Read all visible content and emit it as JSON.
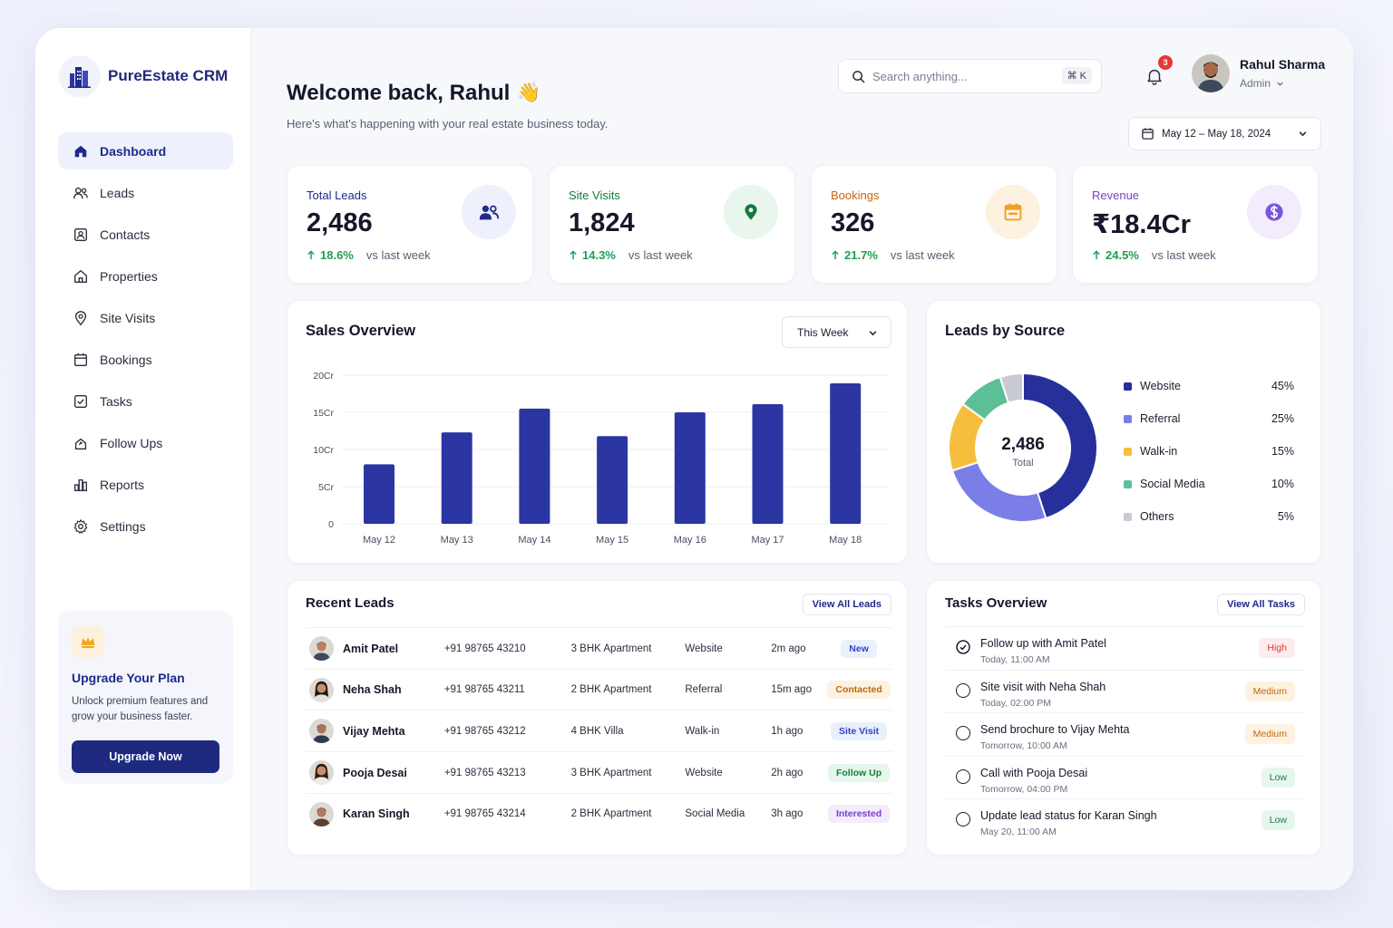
{
  "brand": {
    "name": "PureEstate CRM"
  },
  "sidebar": {
    "items": [
      {
        "label": "Dashboard",
        "icon": "home-icon"
      },
      {
        "label": "Leads",
        "icon": "users-icon"
      },
      {
        "label": "Contacts",
        "icon": "contact-card-icon"
      },
      {
        "label": "Properties",
        "icon": "house-icon"
      },
      {
        "label": "Site Visits",
        "icon": "map-pin-icon"
      },
      {
        "label": "Bookings",
        "icon": "calendar-icon"
      },
      {
        "label": "Tasks",
        "icon": "checkbox-icon"
      },
      {
        "label": "Follow Ups",
        "icon": "follow-up-icon"
      },
      {
        "label": "Reports",
        "icon": "bar-chart-icon"
      },
      {
        "label": "Settings",
        "icon": "gear-icon"
      }
    ],
    "active": "Dashboard"
  },
  "upgrade": {
    "title": "Upgrade Your Plan",
    "text": "Unlock premium features and grow your business faster.",
    "button": "Upgrade Now"
  },
  "header": {
    "welcome": "Welcome back, Rahul",
    "emoji": "👋",
    "subtitle": "Here's what's happening with your real estate business today.",
    "search_placeholder": "Search anything...",
    "search_shortcut": "⌘ K",
    "notification_count": "3",
    "user_name": "Rahul Sharma",
    "user_role": "Admin",
    "date_range": "May 12 – May 18, 2024"
  },
  "kpis": [
    {
      "label": "Total Leads",
      "value": "2,486",
      "change": "18.6%",
      "vs": "vs last week",
      "color": "#1f2a8c",
      "icon": "users-icon",
      "icon_bg": "#eef1fb"
    },
    {
      "label": "Site Visits",
      "value": "1,824",
      "change": "14.3%",
      "vs": "vs last week",
      "color": "#147a3d",
      "icon": "map-pin-icon",
      "icon_bg": "#e8f6ee"
    },
    {
      "label": "Bookings",
      "value": "326",
      "change": "21.7%",
      "vs": "vs last week",
      "color": "#c2680b",
      "icon": "calendar-icon",
      "icon_bg": "#fdf1e0"
    },
    {
      "label": "Revenue",
      "value": "₹18.4Cr",
      "change": "24.5%",
      "vs": "vs last week",
      "color": "#7a3fc7",
      "icon": "dollar-icon",
      "icon_bg": "#f2ecfc"
    }
  ],
  "sales": {
    "title": "Sales Overview",
    "filter": "This Week"
  },
  "chart_data": [
    {
      "type": "bar",
      "title": "Sales Overview",
      "categories": [
        "May 12",
        "May 13",
        "May 14",
        "May 15",
        "May 16",
        "May 17",
        "May 18"
      ],
      "values": [
        8,
        12.3,
        15.5,
        11.8,
        15,
        16.1,
        18.9
      ],
      "yticks": [
        "0",
        "5Cr",
        "10Cr",
        "15Cr",
        "20Cr"
      ],
      "ylim": [
        0,
        20
      ],
      "grid": true,
      "color": "#2b36a3"
    },
    {
      "type": "pie",
      "title": "Leads by Source",
      "center_value": "2,486",
      "center_label": "Total",
      "categories": [
        "Website",
        "Referral",
        "Walk-in",
        "Social Media",
        "Others"
      ],
      "values": [
        45,
        25,
        15,
        10,
        5
      ],
      "labels": [
        "45%",
        "25%",
        "15%",
        "10%",
        "5%"
      ],
      "colors": [
        "#262f9a",
        "#7b7ee6",
        "#f7be3d",
        "#5cbf95",
        "#c9cbd4"
      ],
      "legend": "right"
    }
  ],
  "leads": {
    "title": "Recent Leads",
    "view_all": "View All Leads",
    "rows": [
      {
        "name": "Amit Patel",
        "phone": "+91 98765 43210",
        "property": "3 BHK Apartment",
        "source": "Website",
        "time": "2m ago",
        "status": "New",
        "status_color": "#2f46c9",
        "status_bg": "#eaf0fd"
      },
      {
        "name": "Neha Shah",
        "phone": "+91 98765 43211",
        "property": "2 BHK Apartment",
        "source": "Referral",
        "time": "15m ago",
        "status": "Contacted",
        "status_color": "#c26a0a",
        "status_bg": "#fdf1e1"
      },
      {
        "name": "Vijay Mehta",
        "phone": "+91 98765 43212",
        "property": "4 BHK Villa",
        "source": "Walk-in",
        "time": "1h ago",
        "status": "Site Visit",
        "status_color": "#2f46c9",
        "status_bg": "#e9effd"
      },
      {
        "name": "Pooja Desai",
        "phone": "+91 98765 43213",
        "property": "3 BHK Apartment",
        "source": "Website",
        "time": "2h ago",
        "status": "Follow Up",
        "status_color": "#16813f",
        "status_bg": "#e6f6ec"
      },
      {
        "name": "Karan Singh",
        "phone": "+91 98765 43214",
        "property": "2 BHK Apartment",
        "source": "Social Media",
        "time": "3h ago",
        "status": "Interested",
        "status_color": "#7a3fc7",
        "status_bg": "#f2ecfc"
      }
    ]
  },
  "tasks": {
    "title": "Tasks Overview",
    "view_all": "View All Tasks",
    "rows": [
      {
        "title": "Follow up with Amit Patel",
        "due": "Today, 11:00 AM",
        "priority": "High",
        "color": "#d63a3a",
        "bg": "#fdecec",
        "done": true
      },
      {
        "title": "Site visit with Neha Shah",
        "due": "Today, 02:00 PM",
        "priority": "Medium",
        "color": "#c26a0a",
        "bg": "#fdf1e1",
        "done": false
      },
      {
        "title": "Send brochure to Vijay Mehta",
        "due": "Tomorrow, 10:00 AM",
        "priority": "Medium",
        "color": "#c26a0a",
        "bg": "#fdf1e1",
        "done": false
      },
      {
        "title": "Call with Pooja Desai",
        "due": "Tomorrow, 04:00 PM",
        "priority": "Low",
        "color": "#16813f",
        "bg": "#e6f6ec",
        "done": false
      },
      {
        "title": "Update lead status for Karan Singh",
        "due": "May 20, 11:00 AM",
        "priority": "Low",
        "color": "#16813f",
        "bg": "#e6f6ec",
        "done": false
      }
    ]
  }
}
